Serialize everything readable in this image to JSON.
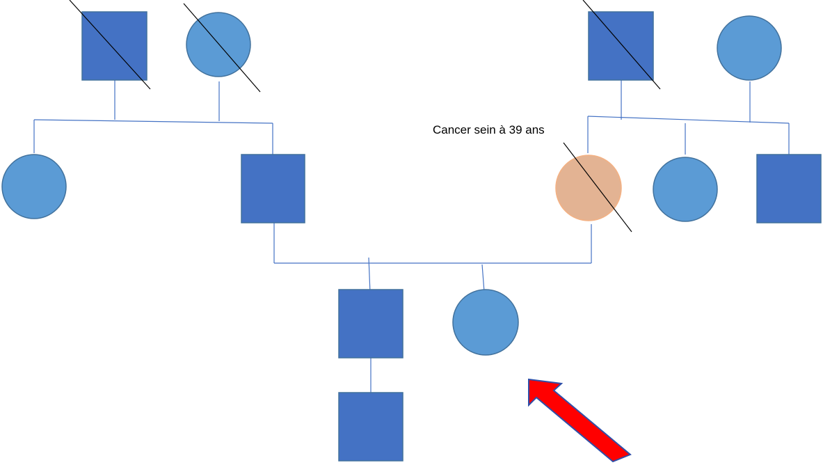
{
  "pedigree": {
    "colors": {
      "male_fill": "#4472c4",
      "female_fill": "#5b9bd5",
      "affected_fill": "#e3b393",
      "shape_stroke": "#41719c",
      "affected_stroke": "#f4b183",
      "line": "#4472c4",
      "deceased_mark": "#000000",
      "arrow_fill": "#ff0000",
      "arrow_stroke": "#2f4fa8"
    },
    "members": [
      {
        "id": "gp-paternal-father",
        "sex": "male",
        "deceased": true,
        "affected": false
      },
      {
        "id": "gp-paternal-mother",
        "sex": "female",
        "deceased": true,
        "affected": false
      },
      {
        "id": "gp-maternal-father",
        "sex": "male",
        "deceased": true,
        "affected": false
      },
      {
        "id": "gp-maternal-mother",
        "sex": "female",
        "deceased": false,
        "affected": false
      },
      {
        "id": "paternal-aunt",
        "sex": "female",
        "deceased": false,
        "affected": false
      },
      {
        "id": "father",
        "sex": "male",
        "deceased": false,
        "affected": false
      },
      {
        "id": "mother",
        "sex": "female",
        "deceased": true,
        "affected": true
      },
      {
        "id": "maternal-aunt",
        "sex": "female",
        "deceased": false,
        "affected": false
      },
      {
        "id": "maternal-uncle",
        "sex": "male",
        "deceased": false,
        "affected": false
      },
      {
        "id": "son",
        "sex": "male",
        "deceased": false,
        "affected": false
      },
      {
        "id": "proband",
        "sex": "female",
        "deceased": false,
        "affected": false,
        "proband": true
      },
      {
        "id": "grandson",
        "sex": "male",
        "deceased": false,
        "affected": false
      }
    ],
    "annotation": "Cancer sein à 39 ans",
    "arrow_icon": "arrow-pointer-icon"
  }
}
